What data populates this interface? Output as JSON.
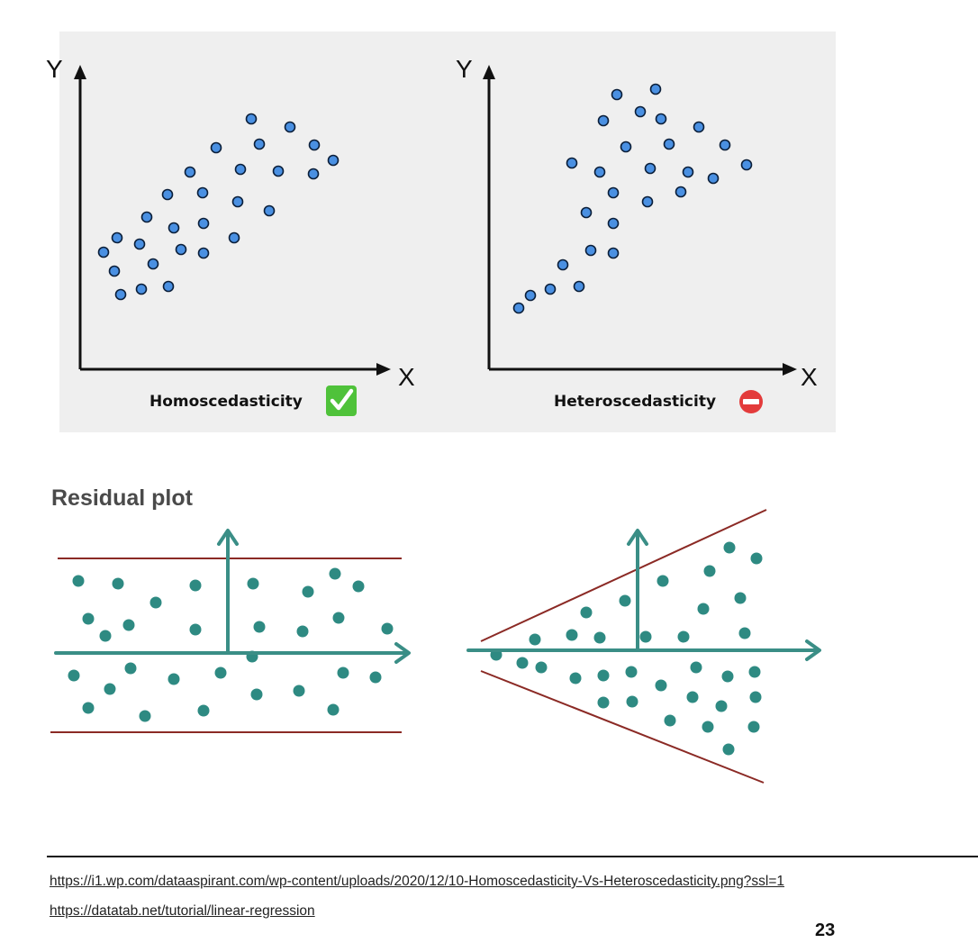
{
  "top_panel": {
    "left_chart": {
      "y_axis_label": "Y",
      "x_axis_label": "X",
      "caption": "Homoscedasticity",
      "badge_icon": "check-mark-icon"
    },
    "right_chart": {
      "y_axis_label": "Y",
      "x_axis_label": "X",
      "caption": "Heteroscedasticity",
      "badge_icon": "no-entry-icon"
    }
  },
  "residual_section": {
    "title": "Residual plot"
  },
  "footer": {
    "links": [
      "https://i1.wp.com/dataaspirant.com/wp-content/uploads/2020/12/10-Homoscedasticity-Vs-Heteroscedasticity.png?ssl=1",
      "https://datatab.net/tutorial/linear-regression"
    ],
    "page_number": "23"
  },
  "colors": {
    "panel_background": "#efefef",
    "point_fill": "#4a90e2",
    "residual_point": "#2e8a82",
    "residual_axis": "#3a8e86",
    "band_line": "#8b2a25",
    "check_badge": "#4fc23a",
    "no_entry_badge": "#e33b3b",
    "title_gray": "#4a4a4a"
  }
}
